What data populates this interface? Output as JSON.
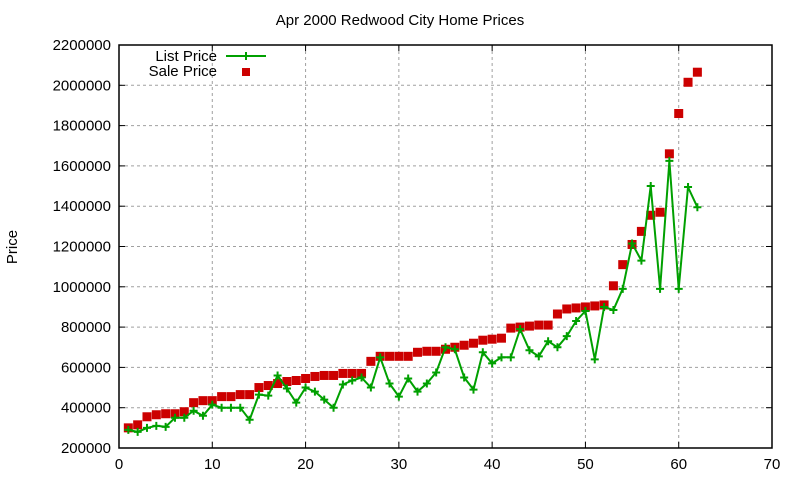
{
  "chart_data": {
    "type": "line",
    "title": "Apr 2000 Redwood City Home Prices",
    "xlabel": "",
    "ylabel": "Price",
    "xlim": [
      0,
      70
    ],
    "ylim": [
      200000,
      2200000
    ],
    "xticks": [
      0,
      10,
      20,
      30,
      40,
      50,
      60,
      70
    ],
    "yticks": [
      200000,
      400000,
      600000,
      800000,
      1000000,
      1200000,
      1400000,
      1600000,
      1800000,
      2000000,
      2200000
    ],
    "grid": true,
    "legend_position": "top-left",
    "x": [
      1,
      2,
      3,
      4,
      5,
      6,
      7,
      8,
      9,
      10,
      11,
      12,
      13,
      14,
      15,
      16,
      17,
      18,
      19,
      20,
      21,
      22,
      23,
      24,
      25,
      26,
      27,
      28,
      29,
      30,
      31,
      32,
      33,
      34,
      35,
      36,
      37,
      38,
      39,
      40,
      41,
      42,
      43,
      44,
      45,
      46,
      47,
      48,
      49,
      50,
      51,
      52,
      53,
      54,
      55,
      56,
      57,
      58,
      59,
      60,
      61,
      62
    ],
    "series": [
      {
        "name": "List Price",
        "style": "linespoints",
        "color": "#00a000",
        "values": [
          290000,
          280000,
          300000,
          310000,
          305000,
          350000,
          350000,
          385000,
          360000,
          415000,
          400000,
          400000,
          400000,
          340000,
          465000,
          460000,
          560000,
          495000,
          425000,
          500000,
          480000,
          440000,
          400000,
          515000,
          535000,
          550000,
          500000,
          650000,
          520000,
          455000,
          545000,
          480000,
          520000,
          575000,
          700000,
          690000,
          550000,
          490000,
          675000,
          620000,
          650000,
          650000,
          790000,
          685000,
          655000,
          730000,
          700000,
          755000,
          830000,
          880000,
          640000,
          900000,
          885000,
          990000,
          1215000,
          1130000,
          1500000,
          990000,
          1625000,
          990000,
          1495000,
          1395000
        ]
      },
      {
        "name": "Sale Price",
        "style": "points",
        "color": "#cc0000",
        "values": [
          300000,
          315000,
          355000,
          365000,
          370000,
          370000,
          380000,
          425000,
          435000,
          435000,
          455000,
          455000,
          465000,
          465000,
          500000,
          510000,
          520000,
          530000,
          535000,
          545000,
          555000,
          560000,
          560000,
          570000,
          570000,
          570000,
          630000,
          655000,
          655000,
          655000,
          655000,
          675000,
          680000,
          680000,
          690000,
          700000,
          710000,
          720000,
          735000,
          740000,
          745000,
          795000,
          800000,
          805000,
          810000,
          810000,
          865000,
          890000,
          895000,
          900000,
          905000,
          910000,
          1005000,
          1110000,
          1210000,
          1275000,
          1355000,
          1370000,
          1660000,
          1860000,
          2015000,
          2065000
        ]
      }
    ]
  },
  "colors": {
    "list": "#00a000",
    "sale": "#cc0000",
    "grid": "#a0a0a0"
  }
}
